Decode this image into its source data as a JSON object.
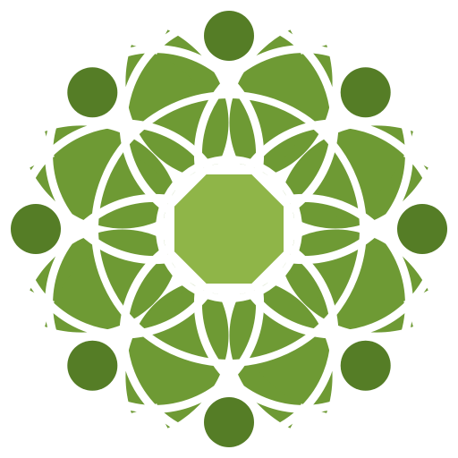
{
  "logo": {
    "icon": "green-rosette-leaf-emblem-icon",
    "colors": {
      "background": "#ffffff",
      "leaf": "#6e9a34",
      "dot": "#557d26",
      "center": "#8fb548",
      "gap": "#ffffff"
    },
    "petal_count": 8,
    "dot_count": 8
  }
}
